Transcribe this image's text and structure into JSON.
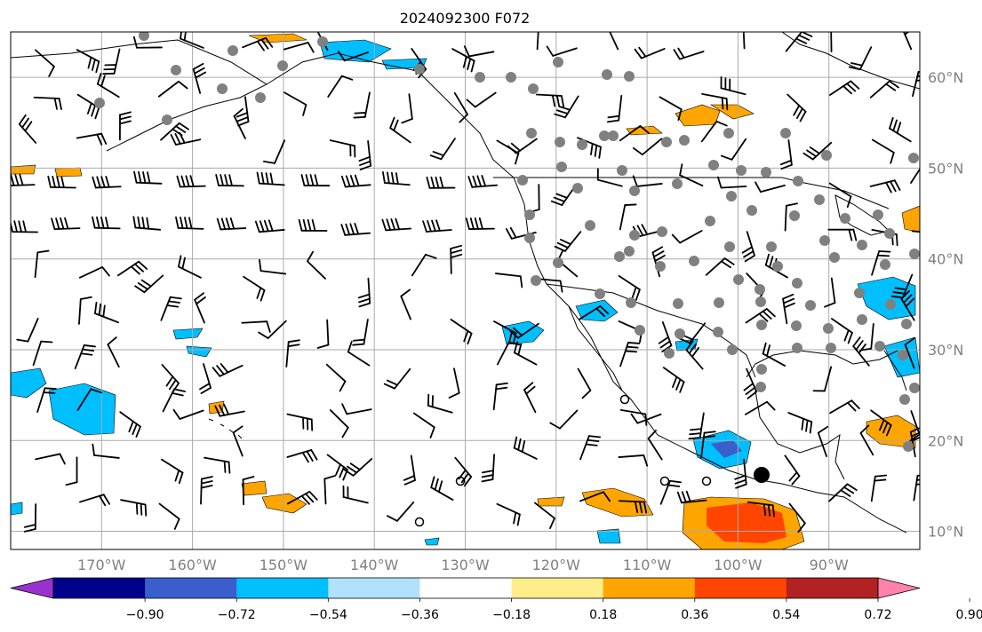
{
  "title": "2024092300 F072",
  "map": {
    "projection": "PlateCarree",
    "lon_range": [
      -180,
      -80
    ],
    "lat_range": [
      8,
      65
    ],
    "gridlines": true,
    "field_colors": {
      "gridline": "#aaaaaa",
      "coastline": "#000000",
      "station": "#808080"
    }
  },
  "lat_labels": [
    {
      "lat": 60,
      "text": "60°N"
    },
    {
      "lat": 50,
      "text": "50°N"
    },
    {
      "lat": 40,
      "text": "40°N"
    },
    {
      "lat": 30,
      "text": "30°N"
    },
    {
      "lat": 20,
      "text": "20°N"
    },
    {
      "lat": 10,
      "text": "10°N"
    }
  ],
  "lon_labels": [
    {
      "lon": -170,
      "text": "170°W"
    },
    {
      "lon": -160,
      "text": "160°W"
    },
    {
      "lon": -150,
      "text": "150°W"
    },
    {
      "lon": -140,
      "text": "140°W"
    },
    {
      "lon": -130,
      "text": "130°W"
    },
    {
      "lon": -120,
      "text": "120°W"
    },
    {
      "lon": -110,
      "text": "110°W"
    },
    {
      "lon": -100,
      "text": "100°W"
    },
    {
      "lon": -90,
      "text": "90°W"
    }
  ],
  "colorbar": {
    "extend": "both",
    "ticks": [
      "−0.90",
      "−0.72",
      "−0.54",
      "−0.36",
      "−0.18",
      "0.18",
      "0.36",
      "0.54",
      "0.72",
      "0.90"
    ],
    "colors": [
      "#9932cc",
      "#00008b",
      "#3a5fcd",
      "#00bfff",
      "#b0e2ff",
      "#ffffff",
      "#ffec8b",
      "#ffa500",
      "#ff4500",
      "#b22222",
      "#ff82ab"
    ]
  }
}
